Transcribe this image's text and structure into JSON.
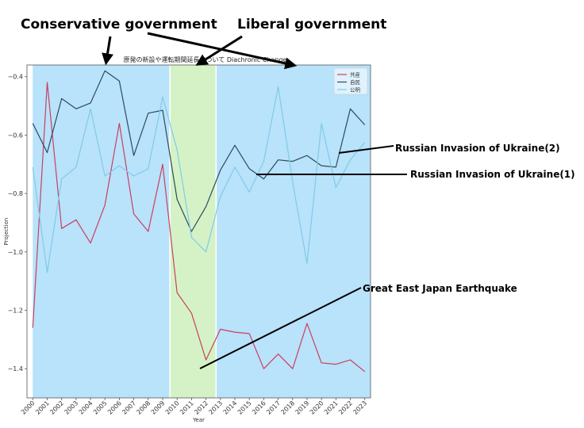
{
  "chart_data": {
    "type": "line",
    "title": "原発の新設や運転期間延長について Diachronic Change",
    "xlabel": "Year",
    "ylabel": "Projection",
    "xlim": [
      1999.6,
      2023.4
    ],
    "ylim": [
      -1.5,
      -0.36
    ],
    "yticks": [
      -1.4,
      -1.2,
      -1.0,
      -0.8,
      -0.6,
      -0.4
    ],
    "ytick_labels": [
      "−1.4",
      "−1.2",
      "−1.0",
      "−0.8",
      "−0.6",
      "−0.4"
    ],
    "x": [
      2000,
      2001,
      2002,
      2003,
      2004,
      2005,
      2006,
      2007,
      2008,
      2009,
      2010,
      2011,
      2012,
      2013,
      2014,
      2015,
      2016,
      2017,
      2018,
      2019,
      2020,
      2021,
      2022,
      2023
    ],
    "xtick_labels": [
      "2000",
      "2001",
      "2002",
      "2003",
      "2004",
      "2005",
      "2006",
      "2007",
      "2008",
      "2009",
      "2010",
      "2011",
      "2012",
      "2013",
      "2014",
      "2015",
      "2016",
      "2017",
      "2018",
      "2019",
      "2020",
      "2021",
      "2022",
      "2023"
    ],
    "grid": false,
    "legend_position": "top-right",
    "series": [
      {
        "name": "共産",
        "color": "#c8405e",
        "values": [
          -1.26,
          -0.42,
          -0.92,
          -0.89,
          -0.97,
          -0.84,
          -0.56,
          -0.87,
          -0.93,
          -0.7,
          -1.14,
          -1.21,
          -1.37,
          -1.265,
          -1.275,
          -1.28,
          -1.4,
          -1.35,
          -1.4,
          -1.245,
          -1.38,
          -1.385,
          -1.37,
          -1.41
        ]
      },
      {
        "name": "自民",
        "color": "#2d4a5e",
        "values": [
          -0.56,
          -0.66,
          -0.475,
          -0.51,
          -0.49,
          -0.38,
          -0.415,
          -0.67,
          -0.525,
          -0.515,
          -0.82,
          -0.93,
          -0.845,
          -0.72,
          -0.635,
          -0.715,
          -0.75,
          -0.685,
          -0.69,
          -0.67,
          -0.705,
          -0.71,
          -0.51,
          -0.565
        ]
      },
      {
        "name": "公明",
        "color": "#7fcbe8",
        "values": [
          -0.71,
          -1.07,
          -0.75,
          -0.71,
          -0.51,
          -0.74,
          -0.705,
          -0.74,
          -0.715,
          -0.47,
          -0.65,
          -0.95,
          -1.0,
          -0.81,
          -0.71,
          -0.795,
          -0.69,
          -0.435,
          -0.76,
          -1.04,
          -0.56,
          -0.78,
          -0.685,
          -0.625
        ]
      }
    ],
    "spans": [
      {
        "from": 2000,
        "to": 2009.5,
        "color": "#b9e2fb"
      },
      {
        "from": 2009.5,
        "to": 2012.7,
        "color": "#d5f2c6"
      },
      {
        "from": 2012.7,
        "to": 2023.4,
        "color": "#b9e2fb"
      }
    ],
    "annotations": [
      {
        "text": "Conservative government"
      },
      {
        "text": "Liberal government"
      },
      {
        "text": "Russian Invasion of Ukraine(2)"
      },
      {
        "text": "Russian Invasion of Ukraine(1)"
      },
      {
        "text": "Great East Japan Earthquake"
      }
    ]
  }
}
